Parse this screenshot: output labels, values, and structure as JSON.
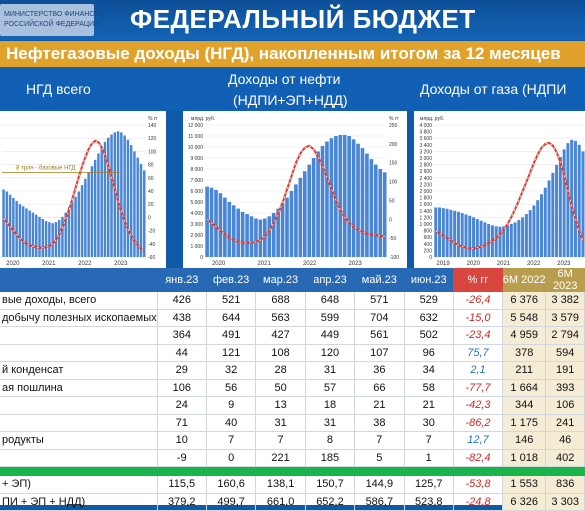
{
  "header": {
    "title": "ФЕДЕРАЛЬНЫЙ БЮДЖЕТ",
    "subtitle": "Нефтегазовые доходы (НГД), накопленным итогом за 12 месяцев",
    "logo_line1": "МИНИСТЕРСТВО ФИНАНСОВ",
    "logo_line2": "РОССИЙСКОЙ ФЕДЕРАЦИИ"
  },
  "panels": {
    "ngd_title": "НГД всего",
    "oil_title_1": "Доходы от нефти",
    "oil_title_2": "(НДПИ+ЭП+НДД)",
    "gas_title": "Доходы от газа (НДПИ"
  },
  "chart_data": [
    {
      "type": "bar",
      "panel": "НГД всего",
      "x_ticks": [
        "2020",
        "2021",
        "2022",
        "2023"
      ],
      "y_right_label": "% гг",
      "y_right_ticks": [
        "140",
        "120",
        "100",
        "80",
        "60",
        "40",
        "20",
        "0",
        "-20",
        "-40",
        "-60"
      ],
      "annotation": "8 трлн - базовые НГД",
      "bars_trln": [
        6.4,
        6.2,
        5.9,
        5.6,
        5.3,
        5.0,
        4.8,
        4.6,
        4.4,
        4.2,
        4.0,
        3.8,
        3.6,
        3.4,
        3.3,
        3.2,
        3.3,
        3.5,
        3.8,
        4.2,
        4.7,
        5.2,
        5.7,
        6.2,
        6.8,
        7.4,
        8.0,
        8.6,
        9.2,
        9.8,
        10.4,
        10.9,
        11.3,
        11.6,
        11.8,
        11.9,
        11.8,
        11.5,
        11.1,
        10.6,
        10.0,
        9.4,
        8.8,
        8.2
      ],
      "series": [
        {
          "values": [
            -2,
            -8,
            -14,
            -20,
            -26,
            -32,
            -36,
            -40,
            -42,
            -44,
            -45,
            -46,
            -46,
            -45,
            -43,
            -40,
            -34,
            -26,
            -15,
            -2,
            12,
            28,
            45,
            62,
            78,
            92,
            104,
            112,
            116,
            114,
            106,
            94,
            78,
            60,
            42,
            24,
            8,
            -6,
            -18,
            -28,
            -36,
            -42,
            -48,
            -52
          ]
        }
      ]
    },
    {
      "type": "bar",
      "panel": "Доходы от нефти (НДПИ+ЭП+НДД)",
      "unit": "млрд. руб.",
      "x_ticks": [
        "2020",
        "2021",
        "2022",
        "2023"
      ],
      "y_left_ticks": [
        "12 000",
        "11 000",
        "10 000",
        "9 000",
        "8 000",
        "7 000",
        "6 000",
        "5 000",
        "4 000",
        "3 000",
        "2 000",
        "1 000",
        "0"
      ],
      "y_right_label": "% гг",
      "y_right_ticks": [
        "250",
        "200",
        "150",
        "100",
        "50",
        "0",
        "-50",
        "-100"
      ],
      "bars": [
        6400,
        6300,
        6100,
        5800,
        5400,
        5000,
        4700,
        4400,
        4100,
        3900,
        3700,
        3500,
        3400,
        3500,
        3700,
        4000,
        4400,
        4900,
        5400,
        6000,
        6600,
        7200,
        7800,
        8400,
        9000,
        9600,
        10100,
        10500,
        10800,
        11000,
        11100,
        11100,
        11000,
        10700,
        10300,
        9900,
        9400,
        8900,
        8400,
        8000,
        7700
      ],
      "series": [
        {
          "values": [
            0,
            -10,
            -20,
            -30,
            -40,
            -50,
            -55,
            -60,
            -62,
            -63,
            -62,
            -60,
            -55,
            -45,
            -30,
            -10,
            15,
            45,
            80,
            115,
            150,
            175,
            190,
            195,
            185,
            165,
            140,
            110,
            80,
            50,
            25,
            5,
            -10,
            -20,
            -28,
            -34,
            -38,
            -40,
            -42,
            -44,
            -45
          ]
        }
      ]
    },
    {
      "type": "bar",
      "panel": "Доходы от газа",
      "unit": "млрд. руб.",
      "x_ticks": [
        "2019",
        "2020",
        "2021",
        "2022",
        "2023"
      ],
      "y_left_ticks": [
        "4 000",
        "3 800",
        "3 600",
        "3 400",
        "3 200",
        "3 000",
        "2 800",
        "2 600",
        "2 400",
        "2 200",
        "2 000",
        "1 800",
        "1 600",
        "1 400",
        "1 200",
        "1 000",
        "800",
        "600",
        "400",
        "200",
        "0"
      ],
      "bars": [
        1500,
        1500,
        1480,
        1460,
        1430,
        1400,
        1370,
        1330,
        1290,
        1250,
        1200,
        1150,
        1100,
        1050,
        1000,
        960,
        930,
        920,
        930,
        960,
        1000,
        1050,
        1120,
        1200,
        1300,
        1420,
        1560,
        1720,
        1900,
        2100,
        2320,
        2550,
        2790,
        3030,
        3260,
        3450,
        3550,
        3520,
        3400,
        3200
      ],
      "series": [
        {
          "values": [
            -5,
            -10,
            -15,
            -20,
            -25,
            -30,
            -35,
            -38,
            -40,
            -42,
            -42,
            -40,
            -38,
            -35,
            -30,
            -25,
            -20,
            -12,
            -2,
            10,
            25,
            42,
            60,
            80,
            100,
            120,
            140,
            158,
            172,
            180,
            182,
            176,
            162,
            140,
            112,
            80,
            48,
            20,
            -5,
            -25
          ]
        }
      ]
    }
  ],
  "table": {
    "headers": [
      "",
      "янв.23",
      "фев.23",
      "мар.23",
      "апр.23",
      "май.23",
      "июн.23",
      "% гг",
      "6М 2022",
      "6М 2023"
    ],
    "rows": [
      {
        "label": "вые доходы, всего",
        "cells": [
          "426",
          "521",
          "688",
          "648",
          "571",
          "529"
        ],
        "pct": "-26,4",
        "h1": "6 376",
        "h2": "3 382"
      },
      {
        "label": "добычу полезных ископаемых",
        "cells": [
          "438",
          "644",
          "563",
          "599",
          "704",
          "632"
        ],
        "pct": "-15,0",
        "h1": "5 548",
        "h2": "3 579"
      },
      {
        "label": "",
        "cells": [
          "364",
          "491",
          "427",
          "449",
          "561",
          "502"
        ],
        "pct": "-23,4",
        "h1": "4 959",
        "h2": "2 794"
      },
      {
        "label": "",
        "cells": [
          "44",
          "121",
          "108",
          "120",
          "107",
          "96"
        ],
        "pct": "75,7",
        "h1": "378",
        "h2": "594"
      },
      {
        "label": "й конденсат",
        "cells": [
          "29",
          "32",
          "28",
          "31",
          "36",
          "34"
        ],
        "pct": "2,1",
        "h1": "211",
        "h2": "191"
      },
      {
        "label": "ая пошлина",
        "cells": [
          "106",
          "56",
          "50",
          "57",
          "66",
          "58"
        ],
        "pct": "-77,7",
        "h1": "1 664",
        "h2": "393"
      },
      {
        "label": "",
        "cells": [
          "24",
          "9",
          "13",
          "18",
          "21",
          "21"
        ],
        "pct": "-42,3",
        "h1": "344",
        "h2": "106"
      },
      {
        "label": "",
        "cells": [
          "71",
          "40",
          "31",
          "31",
          "38",
          "30"
        ],
        "pct": "-86,2",
        "h1": "1 175",
        "h2": "241"
      },
      {
        "label": "родукты",
        "cells": [
          "10",
          "7",
          "7",
          "8",
          "7",
          "7"
        ],
        "pct": "12,7",
        "h1": "146",
        "h2": "46"
      },
      {
        "label": "",
        "cells": [
          "-9",
          "0",
          "221",
          "185",
          "5",
          "1"
        ],
        "pct": "-82,4",
        "h1": "1 018",
        "h2": "402"
      }
    ],
    "bottom_rows": [
      {
        "label": "+ ЭП)",
        "cells": [
          "115,5",
          "160,6",
          "138,1",
          "150,7",
          "144,9",
          "125,7"
        ],
        "pct": "-53,8",
        "h1": "1 553",
        "h2": "836"
      },
      {
        "label": "ПИ + ЭП + НДД)",
        "cells": [
          "379,2",
          "499,7",
          "661,0",
          "652,2",
          "586,7",
          "523,8"
        ],
        "pct": "-24,8",
        "h1": "6 326",
        "h2": "3 303"
      }
    ]
  },
  "colors": {
    "blue_header": "#1160b5",
    "orange_band": "#e0a22a",
    "pct_header": "#d9463f",
    "six_header": "#b99d4e",
    "bar_blue": "#4a86d6",
    "line_red": "#e03a2f",
    "green_sep": "#1bb34b"
  }
}
